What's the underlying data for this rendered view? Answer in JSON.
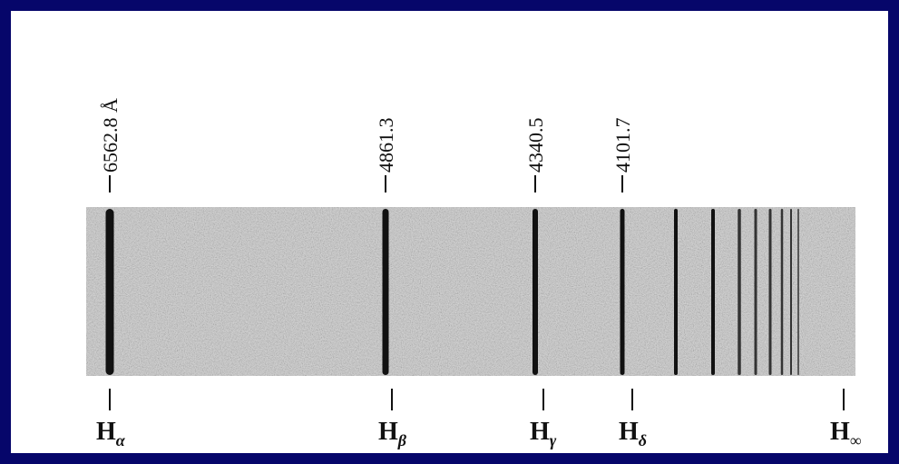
{
  "spectrum": {
    "wavelength_labels": [
      "6562.8 Å",
      "4861.3",
      "4340.5",
      "4101.7"
    ],
    "line_labels": [
      {
        "symbol": "H",
        "subscript": "α"
      },
      {
        "symbol": "H",
        "subscript": "β"
      },
      {
        "symbol": "H",
        "subscript": "γ"
      },
      {
        "symbol": "H",
        "subscript": "δ"
      },
      {
        "symbol": "H",
        "subscript": "∞"
      }
    ]
  }
}
